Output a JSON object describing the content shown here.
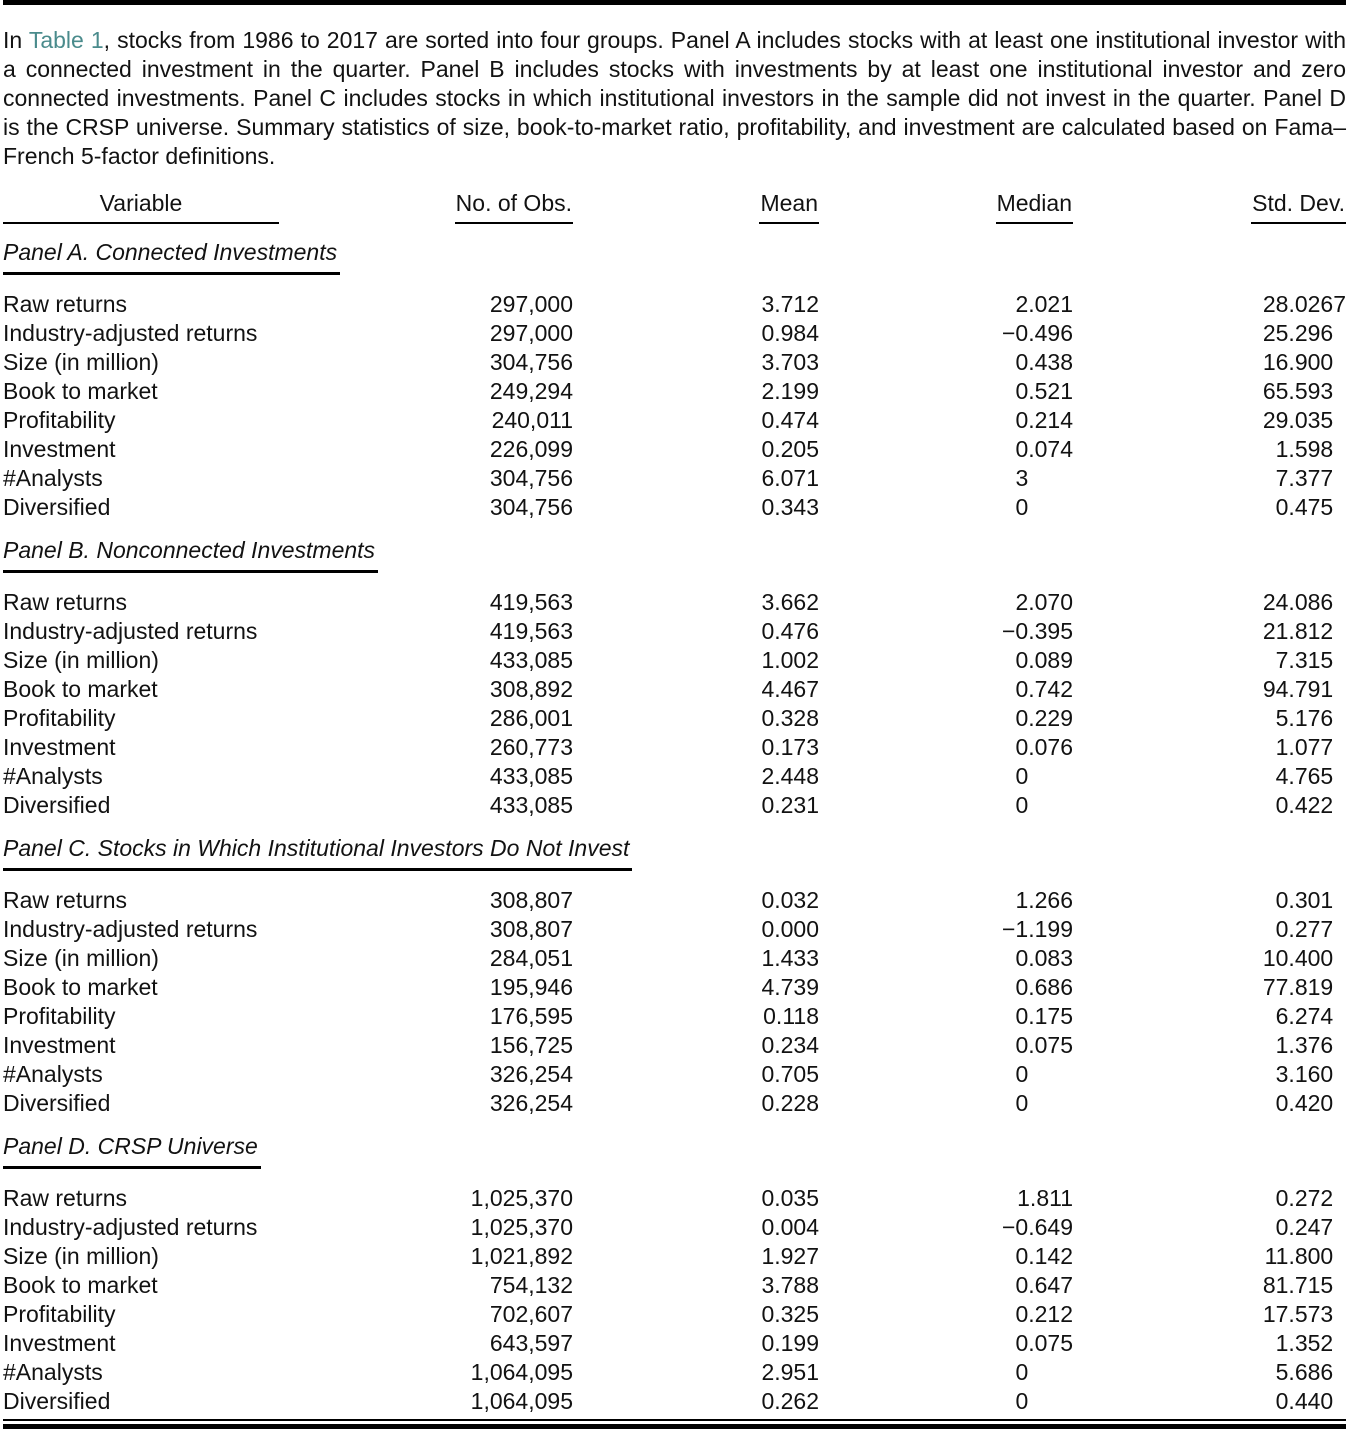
{
  "colors": {
    "link": "#4a8b8c",
    "text": "#121212",
    "rule": "#000000"
  },
  "intro": {
    "prefix": "In ",
    "link": "Table 1",
    "rest": ", stocks from 1986 to 2017 are sorted into four groups. Panel A includes stocks with at least one institutional investor with a connected investment in the quarter. Panel B includes stocks with investments by at least one institutional investor and zero connected investments. Panel C includes stocks in which institutional investors in the sample did not invest in the quarter. Panel D is the CRSP universe. Summary statistics of size, book-to-market ratio, profitability, and investment are calculated based on Fama–French 5-factor definitions."
  },
  "table": {
    "headers": [
      "Variable",
      "No. of Obs.",
      "Mean",
      "Median",
      "Std. Dev."
    ],
    "panels": [
      {
        "title": "Panel A. Connected Investments",
        "rows": [
          [
            "Raw returns",
            "297,000",
            "3.712",
            "2.021",
            "28.0267"
          ],
          [
            "Industry-adjusted returns",
            "297,000",
            "0.984",
            "−0.496",
            "25.296"
          ],
          [
            "Size (in million)",
            "304,756",
            "3.703",
            "0.438",
            "16.900"
          ],
          [
            "Book to market",
            "249,294",
            "2.199",
            "0.521",
            "65.593"
          ],
          [
            "Profitability",
            "240,011",
            "0.474",
            "0.214",
            "29.035"
          ],
          [
            "Investment",
            "226,099",
            "0.205",
            "0.074",
            "1.598"
          ],
          [
            "#Analysts",
            "304,756",
            "6.071",
            "3",
            "7.377"
          ],
          [
            "Diversified",
            "304,756",
            "0.343",
            "0",
            "0.475"
          ]
        ]
      },
      {
        "title": "Panel B. Nonconnected Investments",
        "rows": [
          [
            "Raw returns",
            "419,563",
            "3.662",
            "2.070",
            "24.086"
          ],
          [
            "Industry-adjusted returns",
            "419,563",
            "0.476",
            "−0.395",
            "21.812"
          ],
          [
            "Size (in million)",
            "433,085",
            "1.002",
            "0.089",
            "7.315"
          ],
          [
            "Book to market",
            "308,892",
            "4.467",
            "0.742",
            "94.791"
          ],
          [
            "Profitability",
            "286,001",
            "0.328",
            "0.229",
            "5.176"
          ],
          [
            "Investment",
            "260,773",
            "0.173",
            "0.076",
            "1.077"
          ],
          [
            "#Analysts",
            "433,085",
            "2.448",
            "0",
            "4.765"
          ],
          [
            "Diversified",
            "433,085",
            "0.231",
            "0",
            "0.422"
          ]
        ]
      },
      {
        "title": "Panel C. Stocks in Which Institutional Investors Do Not Invest",
        "rows": [
          [
            "Raw returns",
            "308,807",
            "0.032",
            "1.266",
            "0.301"
          ],
          [
            "Industry-adjusted returns",
            "308,807",
            "0.000",
            "−1.199",
            "0.277"
          ],
          [
            "Size (in million)",
            "284,051",
            "1.433",
            "0.083",
            "10.400"
          ],
          [
            "Book to market",
            "195,946",
            "4.739",
            "0.686",
            "77.819"
          ],
          [
            "Profitability",
            "176,595",
            "0.118",
            "0.175",
            "6.274"
          ],
          [
            "Investment",
            "156,725",
            "0.234",
            "0.075",
            "1.376"
          ],
          [
            "#Analysts",
            "326,254",
            "0.705",
            "0",
            "3.160"
          ],
          [
            "Diversified",
            "326,254",
            "0.228",
            "0",
            "0.420"
          ]
        ]
      },
      {
        "title": "Panel D. CRSP Universe",
        "rows": [
          [
            "Raw returns",
            "1,025,370",
            "0.035",
            "1.811",
            "0.272"
          ],
          [
            "Industry-adjusted returns",
            "1,025,370",
            "0.004",
            "−0.649",
            "0.247"
          ],
          [
            "Size (in million)",
            "1,021,892",
            "1.927",
            "0.142",
            "11.800"
          ],
          [
            "Book to market",
            "754,132",
            "3.788",
            "0.647",
            "81.715"
          ],
          [
            "Profitability",
            "702,607",
            "0.325",
            "0.212",
            "17.573"
          ],
          [
            "Investment",
            "643,597",
            "0.199",
            "0.075",
            "1.352"
          ],
          [
            "#Analysts",
            "1,064,095",
            "2.951",
            "0",
            "5.686"
          ],
          [
            "Diversified",
            "1,064,095",
            "0.262",
            "0",
            "0.440"
          ]
        ]
      }
    ]
  }
}
